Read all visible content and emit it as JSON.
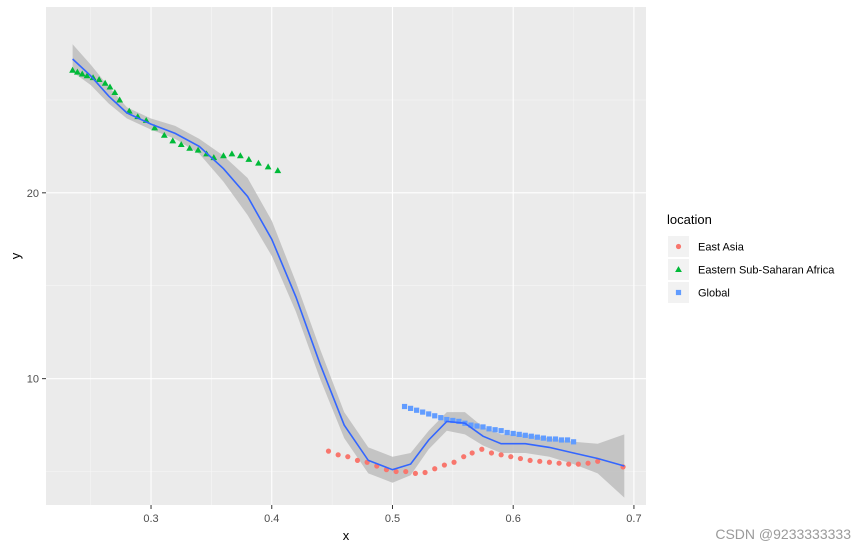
{
  "watermark": "CSDN @9233333333",
  "chart_data": {
    "type": "scatter",
    "xlabel": "x",
    "ylabel": "y",
    "xlim": [
      0.213,
      0.71
    ],
    "ylim": [
      3.2,
      30.0
    ],
    "xticks": [
      0.3,
      0.4,
      0.5,
      0.6,
      0.7
    ],
    "xtick_labels": [
      "0.3",
      "0.4",
      "0.5",
      "0.6",
      "0.7"
    ],
    "yticks": [
      10,
      20
    ],
    "ytick_labels": [
      "10",
      "20"
    ],
    "grid": true,
    "legend": {
      "title": "location",
      "placement": "right"
    },
    "series": [
      {
        "name": "East Asia",
        "color": "#F8766D",
        "shape": "circle",
        "x": [
          0.447,
          0.455,
          0.463,
          0.471,
          0.479,
          0.487,
          0.495,
          0.503,
          0.511,
          0.519,
          0.527,
          0.535,
          0.543,
          0.551,
          0.559,
          0.566,
          0.574,
          0.582,
          0.59,
          0.598,
          0.606,
          0.614,
          0.622,
          0.63,
          0.638,
          0.646,
          0.654,
          0.662,
          0.67,
          0.691
        ],
        "y": [
          6.1,
          5.9,
          5.8,
          5.6,
          5.5,
          5.3,
          5.1,
          5.0,
          5.0,
          4.9,
          4.95,
          5.15,
          5.35,
          5.5,
          5.8,
          6.0,
          6.2,
          6.0,
          5.9,
          5.8,
          5.7,
          5.6,
          5.55,
          5.5,
          5.45,
          5.4,
          5.4,
          5.45,
          5.55,
          5.25
        ]
      },
      {
        "name": "Eastern Sub-Saharan Africa",
        "color": "#00BA38",
        "shape": "triangle",
        "x": [
          0.235,
          0.239,
          0.243,
          0.247,
          0.252,
          0.257,
          0.262,
          0.266,
          0.27,
          0.274,
          0.282,
          0.289,
          0.296,
          0.303,
          0.311,
          0.318,
          0.325,
          0.332,
          0.339,
          0.346,
          0.352,
          0.36,
          0.367,
          0.374,
          0.381,
          0.389,
          0.397,
          0.405
        ],
        "y": [
          26.6,
          26.5,
          26.4,
          26.3,
          26.2,
          26.1,
          25.9,
          25.7,
          25.4,
          25.0,
          24.4,
          24.1,
          23.9,
          23.5,
          23.1,
          22.8,
          22.6,
          22.4,
          22.3,
          22.1,
          21.9,
          22.0,
          22.1,
          22.0,
          21.8,
          21.6,
          21.4,
          21.2
        ]
      },
      {
        "name": "Global",
        "color": "#619CFF",
        "shape": "square",
        "x": [
          0.51,
          0.515,
          0.52,
          0.525,
          0.53,
          0.535,
          0.54,
          0.545,
          0.55,
          0.555,
          0.56,
          0.565,
          0.57,
          0.575,
          0.58,
          0.585,
          0.59,
          0.595,
          0.6,
          0.605,
          0.61,
          0.615,
          0.62,
          0.625,
          0.63,
          0.635,
          0.64,
          0.645,
          0.65
        ],
        "y": [
          8.5,
          8.4,
          8.3,
          8.2,
          8.1,
          8.0,
          7.9,
          7.8,
          7.75,
          7.7,
          7.6,
          7.5,
          7.45,
          7.4,
          7.3,
          7.25,
          7.2,
          7.1,
          7.05,
          7.0,
          6.95,
          6.9,
          6.85,
          6.8,
          6.75,
          6.75,
          6.7,
          6.7,
          6.6
        ]
      }
    ],
    "smooth": {
      "color": "#3366FF",
      "band_color": "#BDBDBD",
      "x": [
        0.235,
        0.25,
        0.265,
        0.28,
        0.3,
        0.32,
        0.34,
        0.36,
        0.38,
        0.4,
        0.42,
        0.44,
        0.46,
        0.48,
        0.5,
        0.515,
        0.53,
        0.545,
        0.56,
        0.575,
        0.59,
        0.61,
        0.63,
        0.65,
        0.67,
        0.692
      ],
      "y": [
        27.2,
        26.3,
        25.2,
        24.3,
        23.7,
        23.2,
        22.5,
        21.3,
        19.8,
        17.5,
        14.4,
        10.8,
        7.5,
        5.6,
        5.1,
        5.4,
        6.7,
        7.7,
        7.6,
        6.9,
        6.5,
        6.5,
        6.3,
        6.0,
        5.7,
        5.3
      ],
      "lower": [
        26.5,
        25.8,
        24.8,
        24.0,
        23.4,
        22.9,
        22.1,
        20.6,
        18.8,
        16.6,
        13.6,
        10.0,
        6.8,
        4.9,
        4.4,
        4.8,
        6.2,
        7.2,
        7.0,
        6.4,
        6.0,
        6.0,
        5.8,
        5.4,
        4.9,
        3.6
      ],
      "upper": [
        28.0,
        26.9,
        25.7,
        24.6,
        24.0,
        23.6,
        22.9,
        22.0,
        20.8,
        18.5,
        15.2,
        11.6,
        8.2,
        6.3,
        5.8,
        6.0,
        7.2,
        8.2,
        8.2,
        7.4,
        7.0,
        7.0,
        6.8,
        6.6,
        6.5,
        7.0
      ]
    }
  }
}
